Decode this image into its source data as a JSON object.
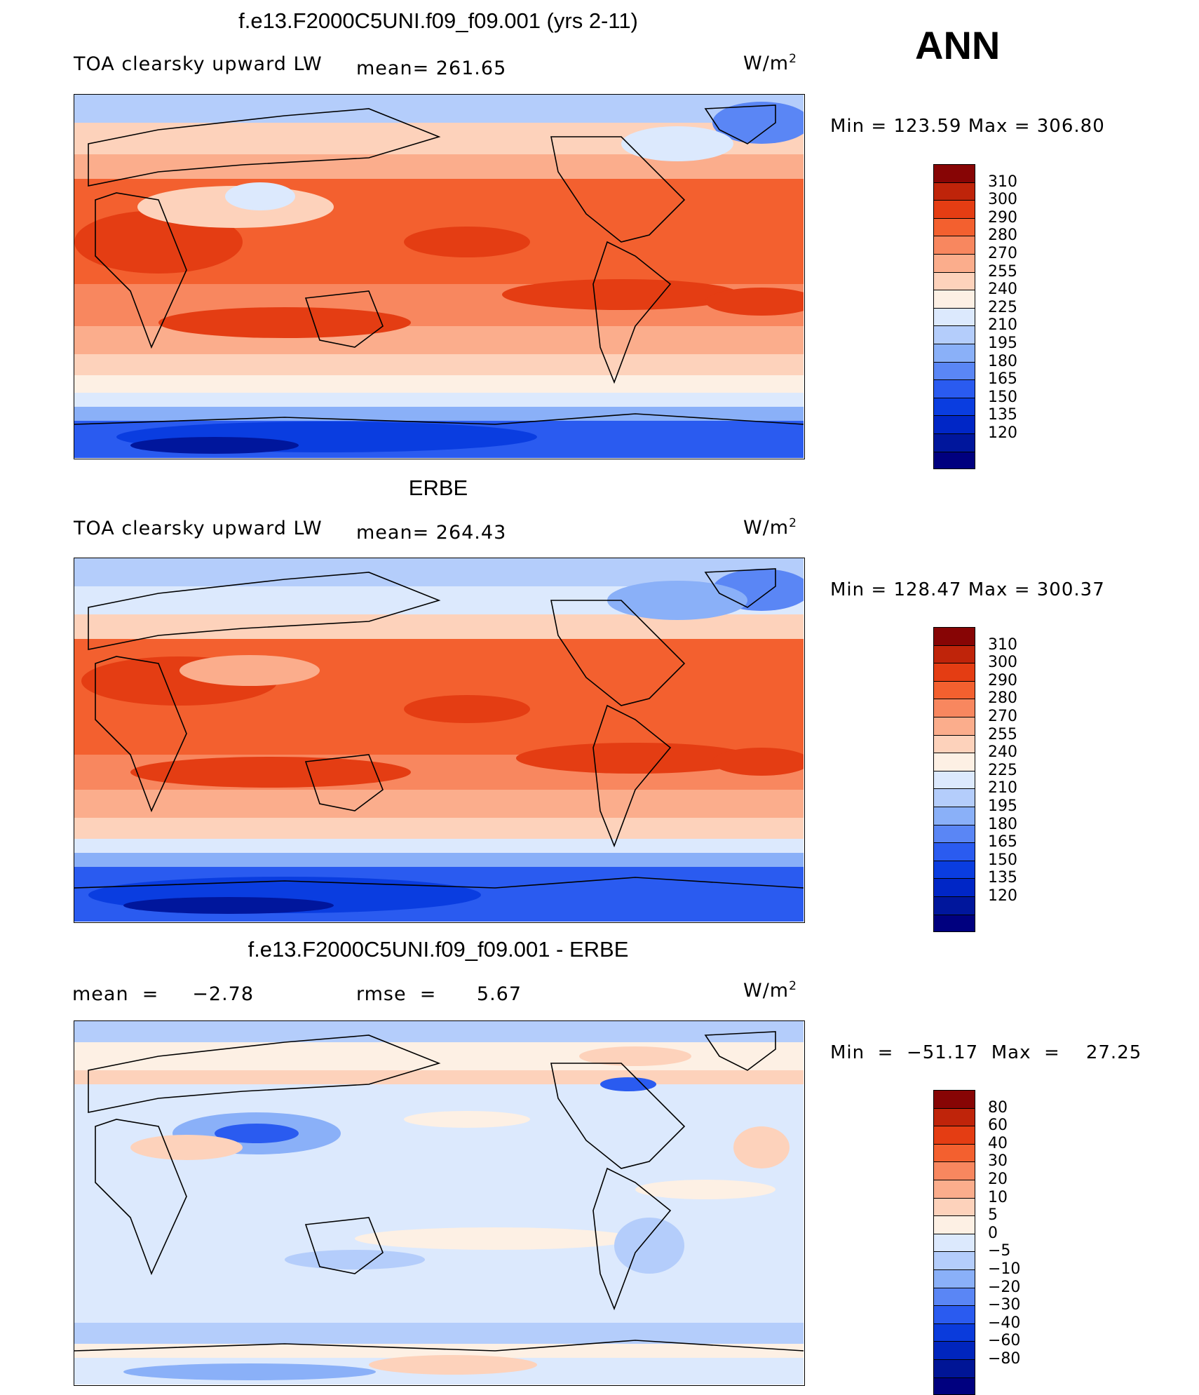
{
  "season": "ANN",
  "colors": {
    "abs_levels": [
      "#00007f",
      "#00169c",
      "#0026c6",
      "#0a3de0",
      "#2a5bf0",
      "#5a86f5",
      "#8ab0f8",
      "#b4cdfb",
      "#dce9fd",
      "#fdf0e4",
      "#fdd2bb",
      "#fbad8c",
      "#f8875f",
      "#f3602f",
      "#e43d13",
      "#bf240a",
      "#870505"
    ],
    "diff_levels": [
      "#00007f",
      "#001596",
      "#0025bd",
      "#0a3bdc",
      "#2a5bf0",
      "#5a86f5",
      "#8ab0f8",
      "#b4cdfb",
      "#dce9fd",
      "#fdf0e4",
      "#fdd2bb",
      "#fbad8c",
      "#f8875f",
      "#f3602f",
      "#e43d13",
      "#bf240a",
      "#870505"
    ]
  },
  "panels": [
    {
      "title": "f.e13.F2000C5UNI.f09_f09.001 (yrs 2-11)",
      "left_label": "TOA clearsky upward LW",
      "stat_label": "mean= 261.65",
      "units": "W/m",
      "units_sup": "2",
      "minmax": "Min  =  123.59  Max  =  306.80",
      "colorbar_labels": [
        "310",
        "300",
        "290",
        "280",
        "270",
        "255",
        "240",
        "225",
        "210",
        "195",
        "180",
        "165",
        "150",
        "135",
        "120"
      ]
    },
    {
      "title": "ERBE",
      "left_label": "TOA clearsky upward LW",
      "stat_label": "mean= 264.43",
      "units": "W/m",
      "units_sup": "2",
      "minmax": "Min  =  128.47  Max  =  300.37",
      "colorbar_labels": [
        "310",
        "300",
        "290",
        "280",
        "270",
        "255",
        "240",
        "225",
        "210",
        "195",
        "180",
        "165",
        "150",
        "135",
        "120"
      ]
    },
    {
      "title": "f.e13.F2000C5UNI.f09_f09.001 - ERBE",
      "left_label": "mean  =     −2.78",
      "stat_label": "rmse  =      5.67",
      "units": "W/m",
      "units_sup": "2",
      "minmax": "Min  =  −51.17  Max  =    27.25",
      "colorbar_labels": [
        "80",
        "60",
        "40",
        "30",
        "20",
        "10",
        "5",
        "0",
        "−5",
        "−10",
        "−20",
        "−30",
        "−40",
        "−60",
        "−80"
      ]
    }
  ],
  "chart_data": [
    {
      "type": "heatmap",
      "title": "f.e13.F2000C5UNI.f09_f09.001 (yrs 2-11)",
      "variable": "TOA clearsky upward LW",
      "units": "W/m2",
      "mean": 261.65,
      "min": 123.59,
      "max": 306.8,
      "contour_levels": [
        120,
        135,
        150,
        165,
        180,
        195,
        210,
        225,
        240,
        255,
        270,
        280,
        290,
        300,
        310
      ]
    },
    {
      "type": "heatmap",
      "title": "ERBE",
      "variable": "TOA clearsky upward LW",
      "units": "W/m2",
      "mean": 264.43,
      "min": 128.47,
      "max": 300.37,
      "contour_levels": [
        120,
        135,
        150,
        165,
        180,
        195,
        210,
        225,
        240,
        255,
        270,
        280,
        290,
        300,
        310
      ]
    },
    {
      "type": "heatmap",
      "title": "f.e13.F2000C5UNI.f09_f09.001 - ERBE",
      "units": "W/m2",
      "mean": -2.78,
      "rmse": 5.67,
      "min": -51.17,
      "max": 27.25,
      "contour_levels": [
        -80,
        -60,
        -40,
        -30,
        -20,
        -10,
        -5,
        0,
        5,
        10,
        20,
        30,
        40,
        60,
        80
      ]
    }
  ]
}
